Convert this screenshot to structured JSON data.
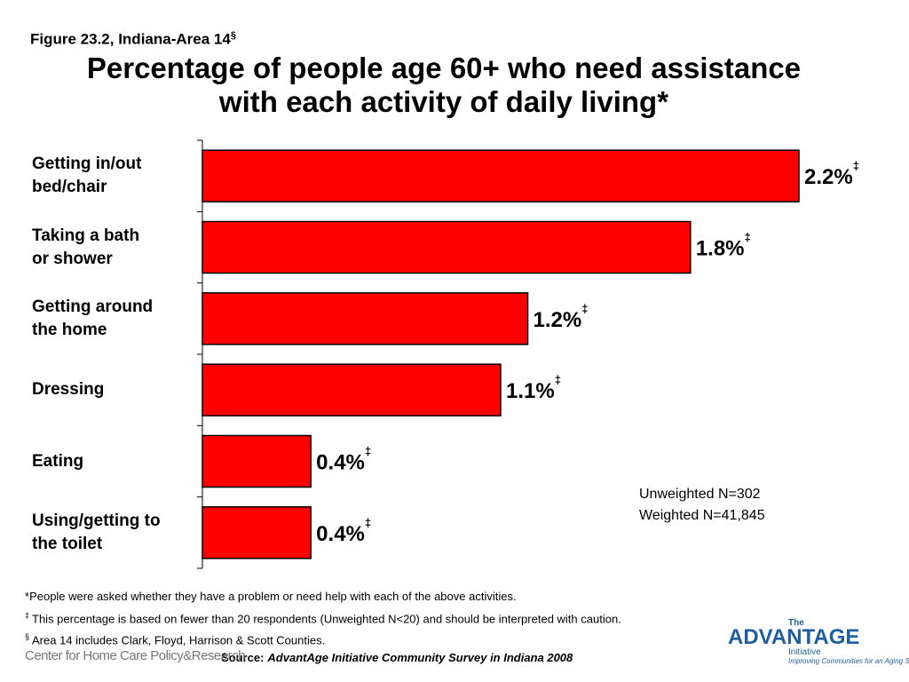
{
  "chart_data": {
    "type": "hbar",
    "figure_label": "Figure 23.2, Indiana-Area 14",
    "figure_label_mark": "§",
    "title": "Percentage of people age 60+ who need assistance\nwith each activity of daily living*",
    "categories": [
      "Getting in/out\nbed/chair",
      "Taking a bath\nor shower",
      "Getting around\nthe home",
      "Dressing",
      "Eating",
      "Using/getting to\nthe toilet"
    ],
    "values": [
      2.2,
      1.8,
      1.2,
      1.1,
      0.4,
      0.4
    ],
    "value_labels": [
      "2.2%",
      "1.8%",
      "1.2%",
      "1.1%",
      "0.4%",
      "0.4%"
    ],
    "value_label_mark": "‡",
    "color": "#ff0000",
    "annotation": [
      "Unweighted N=302",
      "Weighted N=41,845"
    ],
    "footnotes": [
      {
        "mark": "*",
        "text": "People were asked whether they have a problem or need help with each of the above activities."
      },
      {
        "mark": "‡",
        "text": "This percentage is based on fewer than 20 respondents (Unweighted N<20) and should be interpreted with caution."
      },
      {
        "mark": "§",
        "text": "Area 14 includes Clark, Floyd, Harrison & Scott Counties."
      }
    ],
    "source": {
      "label": "Source:",
      "text": "AdvantAge Initiative Community Survey in Indiana 2008"
    },
    "logo_left": "Center for Home Care Policy&Research",
    "logo_right": {
      "top": "The",
      "name": "ADVANTAGE",
      "sub": "Initiative",
      "tagline": "Improving Communities for an Aging Society"
    }
  }
}
